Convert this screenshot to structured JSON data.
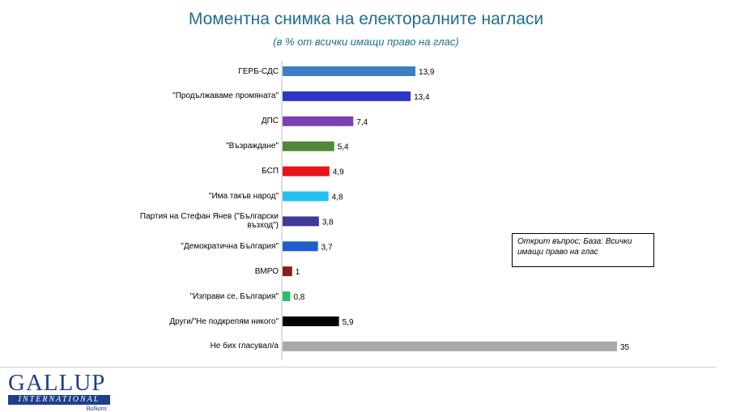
{
  "chart_data": {
    "type": "bar",
    "orientation": "horizontal",
    "title": "Моментна снимка на електоралните нагласи",
    "subtitle": "(в % от всички имащи право на глас)",
    "categories": [
      "ГЕРБ-СДС",
      "\"Продължаваме промяната\"",
      "ДПС",
      "\"Възраждане\"",
      "БСП",
      "\"Има такъв народ\"",
      "Партия на Стефан Янев (\"Български възход\")",
      "\"Демократична България\"",
      "ВМРО",
      "\"Изправи се, България\"",
      "Други/\"Не подкрепям никого\"",
      "Не бих гласувал/а"
    ],
    "values": [
      13.9,
      13.4,
      7.4,
      5.4,
      4.9,
      4.8,
      3.8,
      3.7,
      1,
      0.8,
      5.9,
      35
    ],
    "value_labels": [
      "13,9",
      "13,4",
      "7,4",
      "5,4",
      "4,9",
      "4,8",
      "3,8",
      "3,7",
      "1",
      "0,8",
      "5,9",
      "35"
    ],
    "colors": [
      "#3d7fc4",
      "#2e35c9",
      "#7a3fb4",
      "#4e8a3a",
      "#e8141c",
      "#21c0f0",
      "#3a3c96",
      "#1e5fc9",
      "#8a1d1d",
      "#27c06a",
      "#050505",
      "#a9a9a9"
    ],
    "xlim": [
      0,
      35
    ],
    "grid": false,
    "legend": "none"
  },
  "note": "Открит въпрос; База: Всички имащи право на глас",
  "logo": {
    "main": "GALLUP",
    "bar": "INTERNATIONAL",
    "sub": "Balkans"
  }
}
